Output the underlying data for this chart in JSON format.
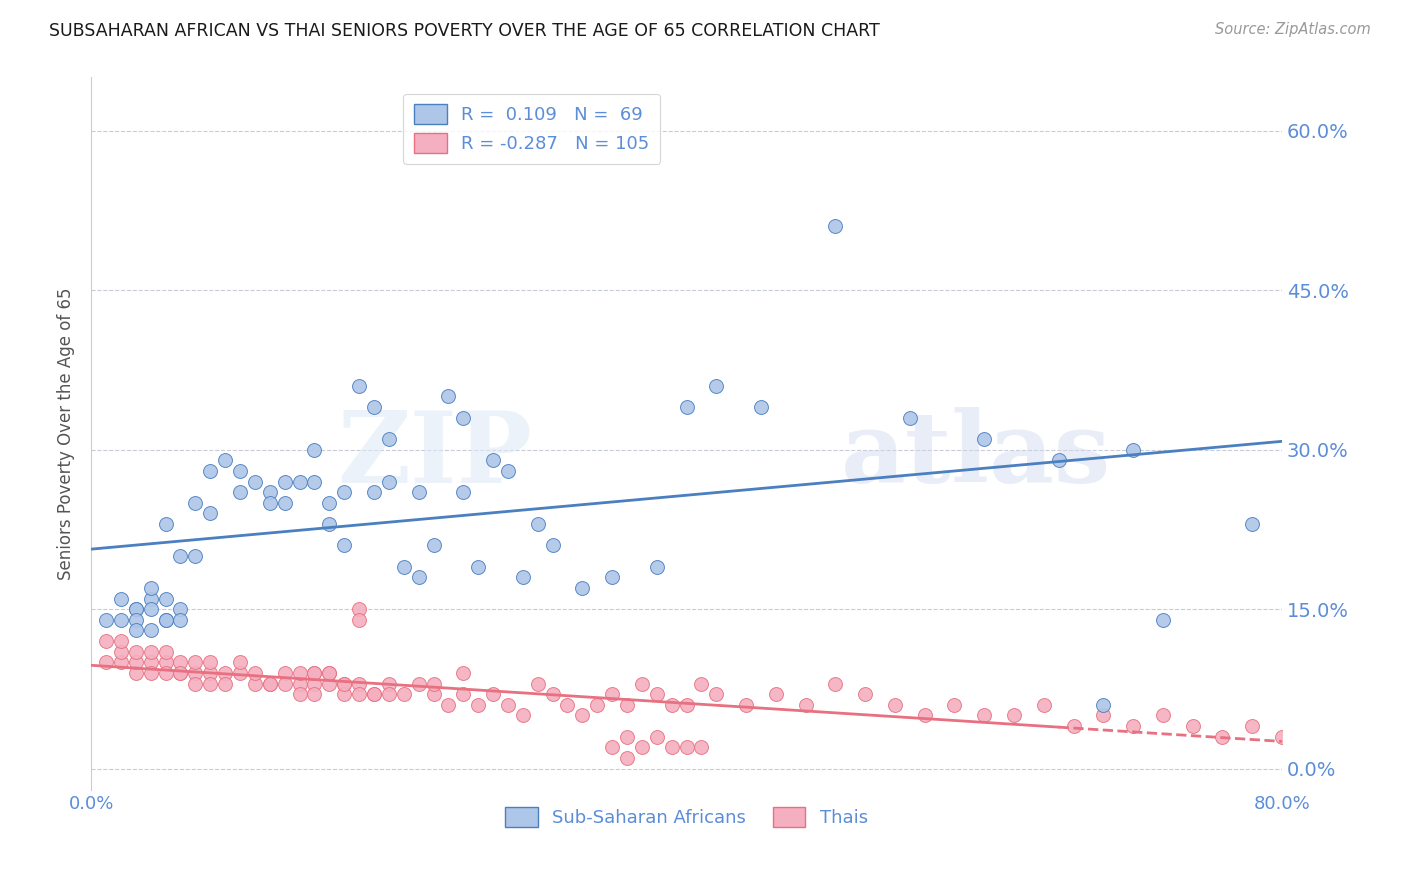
{
  "title": "SUBSAHARAN AFRICAN VS THAI SENIORS POVERTY OVER THE AGE OF 65 CORRELATION CHART",
  "source": "Source: ZipAtlas.com",
  "ylabel": "Seniors Poverty Over the Age of 65",
  "xlim": [
    0.0,
    0.8
  ],
  "ylim": [
    -0.02,
    0.65
  ],
  "yticks": [
    0.0,
    0.15,
    0.3,
    0.45,
    0.6
  ],
  "ytick_labels": [
    "0.0%",
    "15.0%",
    "30.0%",
    "45.0%",
    "60.0%"
  ],
  "xticks": [
    0.0,
    0.2,
    0.4,
    0.6,
    0.8
  ],
  "xtick_labels": [
    "0.0%",
    "",
    "",
    "",
    "80.0%"
  ],
  "blue_R": 0.109,
  "blue_N": 69,
  "pink_R": -0.287,
  "pink_N": 105,
  "blue_color": "#aec6e8",
  "pink_color": "#f4afc0",
  "blue_line_color": "#4a7fc0",
  "pink_line_color": "#e87080",
  "axis_color": "#5b8dd9",
  "grid_color": "#c8ccd8",
  "blue_scatter_x": [
    0.01,
    0.02,
    0.02,
    0.03,
    0.03,
    0.03,
    0.03,
    0.04,
    0.04,
    0.04,
    0.04,
    0.05,
    0.05,
    0.05,
    0.05,
    0.06,
    0.06,
    0.06,
    0.07,
    0.07,
    0.08,
    0.08,
    0.09,
    0.1,
    0.1,
    0.11,
    0.12,
    0.12,
    0.13,
    0.13,
    0.14,
    0.15,
    0.15,
    0.16,
    0.16,
    0.17,
    0.17,
    0.18,
    0.19,
    0.19,
    0.2,
    0.2,
    0.21,
    0.22,
    0.22,
    0.23,
    0.24,
    0.25,
    0.25,
    0.26,
    0.27,
    0.28,
    0.29,
    0.3,
    0.31,
    0.33,
    0.35,
    0.38,
    0.4,
    0.42,
    0.45,
    0.5,
    0.55,
    0.6,
    0.65,
    0.68,
    0.7,
    0.72,
    0.78
  ],
  "blue_scatter_y": [
    0.14,
    0.16,
    0.14,
    0.15,
    0.15,
    0.14,
    0.13,
    0.16,
    0.17,
    0.15,
    0.13,
    0.14,
    0.23,
    0.16,
    0.14,
    0.2,
    0.15,
    0.14,
    0.25,
    0.2,
    0.24,
    0.28,
    0.29,
    0.26,
    0.28,
    0.27,
    0.26,
    0.25,
    0.25,
    0.27,
    0.27,
    0.27,
    0.3,
    0.23,
    0.25,
    0.26,
    0.21,
    0.36,
    0.34,
    0.26,
    0.27,
    0.31,
    0.19,
    0.26,
    0.18,
    0.21,
    0.35,
    0.33,
    0.26,
    0.19,
    0.29,
    0.28,
    0.18,
    0.23,
    0.21,
    0.17,
    0.18,
    0.19,
    0.34,
    0.36,
    0.34,
    0.51,
    0.33,
    0.31,
    0.29,
    0.06,
    0.3,
    0.14,
    0.23
  ],
  "pink_scatter_x": [
    0.01,
    0.01,
    0.02,
    0.02,
    0.02,
    0.03,
    0.03,
    0.03,
    0.04,
    0.04,
    0.04,
    0.05,
    0.05,
    0.05,
    0.06,
    0.06,
    0.06,
    0.07,
    0.07,
    0.07,
    0.08,
    0.08,
    0.08,
    0.09,
    0.09,
    0.1,
    0.1,
    0.11,
    0.11,
    0.12,
    0.12,
    0.13,
    0.13,
    0.14,
    0.14,
    0.15,
    0.15,
    0.15,
    0.16,
    0.16,
    0.17,
    0.17,
    0.18,
    0.18,
    0.18,
    0.19,
    0.19,
    0.2,
    0.2,
    0.21,
    0.22,
    0.23,
    0.23,
    0.24,
    0.25,
    0.25,
    0.26,
    0.27,
    0.28,
    0.29,
    0.3,
    0.31,
    0.32,
    0.33,
    0.34,
    0.35,
    0.36,
    0.37,
    0.38,
    0.39,
    0.4,
    0.41,
    0.42,
    0.44,
    0.46,
    0.48,
    0.5,
    0.52,
    0.54,
    0.56,
    0.58,
    0.6,
    0.62,
    0.64,
    0.66,
    0.68,
    0.7,
    0.72,
    0.74,
    0.76,
    0.78,
    0.8,
    0.36,
    0.37,
    0.38,
    0.39,
    0.4,
    0.41,
    0.35,
    0.36,
    0.14,
    0.15,
    0.16,
    0.17,
    0.18
  ],
  "pink_scatter_y": [
    0.1,
    0.12,
    0.1,
    0.11,
    0.12,
    0.09,
    0.1,
    0.11,
    0.1,
    0.11,
    0.09,
    0.1,
    0.09,
    0.11,
    0.09,
    0.1,
    0.09,
    0.09,
    0.1,
    0.08,
    0.09,
    0.1,
    0.08,
    0.09,
    0.08,
    0.09,
    0.1,
    0.08,
    0.09,
    0.08,
    0.08,
    0.09,
    0.08,
    0.08,
    0.07,
    0.08,
    0.09,
    0.07,
    0.09,
    0.08,
    0.08,
    0.07,
    0.08,
    0.15,
    0.07,
    0.07,
    0.07,
    0.08,
    0.07,
    0.07,
    0.08,
    0.07,
    0.08,
    0.06,
    0.09,
    0.07,
    0.06,
    0.07,
    0.06,
    0.05,
    0.08,
    0.07,
    0.06,
    0.05,
    0.06,
    0.07,
    0.06,
    0.08,
    0.07,
    0.06,
    0.06,
    0.08,
    0.07,
    0.06,
    0.07,
    0.06,
    0.08,
    0.07,
    0.06,
    0.05,
    0.06,
    0.05,
    0.05,
    0.06,
    0.04,
    0.05,
    0.04,
    0.05,
    0.04,
    0.03,
    0.04,
    0.03,
    0.03,
    0.02,
    0.03,
    0.02,
    0.02,
    0.02,
    0.02,
    0.01,
    0.09,
    0.09,
    0.09,
    0.08,
    0.14
  ]
}
